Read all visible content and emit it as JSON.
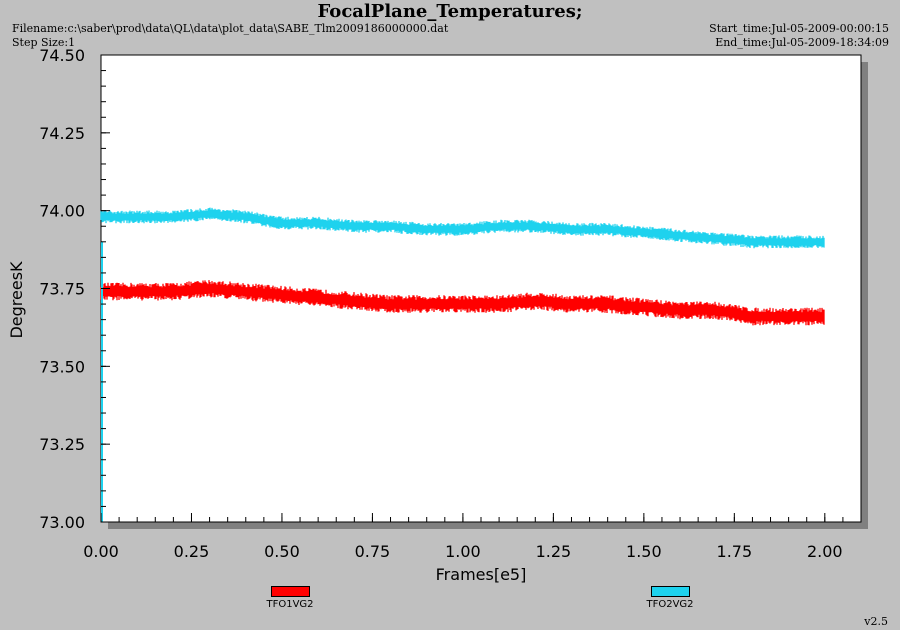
{
  "header": {
    "title": "FocalPlane_Temperatures;",
    "filename": "Filename:c:\\saber\\prod\\data\\QL\\data\\plot_data\\SABE_Tlm2009186000000.dat",
    "step_size": "Step Size:1",
    "start_time": "Start_time:Jul-05-2009-00:00:15",
    "end_time": "End_time:Jul-05-2009-18:34:09"
  },
  "version": "v2.5",
  "chart_data": {
    "type": "line",
    "title": "FocalPlane_Temperatures;",
    "xlabel": "Frames[e5]",
    "ylabel": "DegreesK",
    "xlim": [
      0,
      2.1
    ],
    "ylim": [
      73.0,
      74.5
    ],
    "xticks": [
      "0.00",
      "0.25",
      "0.50",
      "0.75",
      "1.00",
      "1.25",
      "1.50",
      "1.75",
      "2.00"
    ],
    "yticks": [
      "73.00",
      "73.25",
      "73.50",
      "73.75",
      "74.00",
      "74.25",
      "74.50"
    ],
    "grid": false,
    "legend_position": "bottom",
    "series": [
      {
        "name": "TFO1VG2",
        "color": "#ff0000",
        "x": [
          0.0,
          0.1,
          0.2,
          0.3,
          0.4,
          0.5,
          0.6,
          0.7,
          0.8,
          0.9,
          1.0,
          1.1,
          1.2,
          1.3,
          1.4,
          1.5,
          1.6,
          1.7,
          1.8,
          1.9,
          2.0
        ],
        "y": [
          73.74,
          73.74,
          73.74,
          73.75,
          73.74,
          73.73,
          73.72,
          73.71,
          73.7,
          73.7,
          73.7,
          73.7,
          73.71,
          73.7,
          73.7,
          73.69,
          73.68,
          73.68,
          73.66,
          73.66,
          73.66
        ],
        "spread": 0.025
      },
      {
        "name": "TFO2VG2",
        "color": "#1ed2ee",
        "x": [
          0.0,
          0.1,
          0.2,
          0.3,
          0.4,
          0.5,
          0.6,
          0.7,
          0.8,
          0.9,
          1.0,
          1.1,
          1.2,
          1.3,
          1.4,
          1.5,
          1.6,
          1.7,
          1.8,
          1.9,
          2.0
        ],
        "y": [
          73.98,
          73.98,
          73.98,
          73.99,
          73.98,
          73.96,
          73.96,
          73.95,
          73.95,
          73.94,
          73.94,
          73.95,
          73.95,
          73.94,
          73.94,
          73.93,
          73.92,
          73.91,
          73.9,
          73.9,
          73.9
        ],
        "spread": 0.018
      }
    ]
  }
}
